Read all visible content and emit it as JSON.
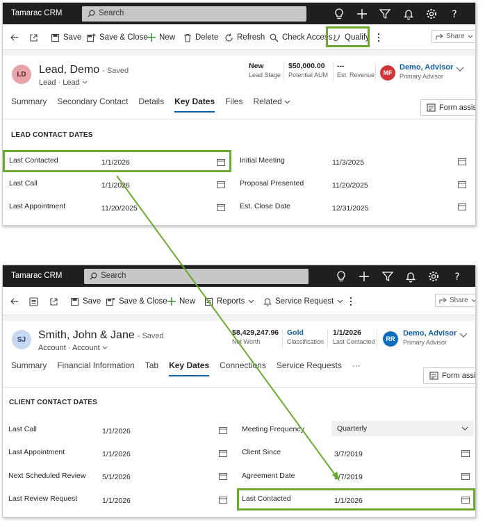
{
  "app_name": "Tamarac CRM",
  "search_placeholder": "Search",
  "colors": {
    "accent": "#115ea3",
    "highlight": "#6aaa2e",
    "topbar": "#1f1f1f"
  },
  "lead": {
    "commands": {
      "save": "Save",
      "save_close": "Save & Close",
      "new": "New",
      "delete": "Delete",
      "refresh": "Refresh",
      "check_access": "Check Access",
      "qualify": "Qualify",
      "share": "Share"
    },
    "avatar": "LD",
    "title": "Lead, Demo",
    "saved": "- Saved",
    "entity1": "Lead",
    "entity2": "Lead",
    "metrics": [
      {
        "value": "New",
        "label": "Lead Stage"
      },
      {
        "value": "$50,000.00",
        "label": "Potential AUM"
      },
      {
        "value": "---",
        "label": "Est. Revenue"
      }
    ],
    "owner_avatar": "MF",
    "owner_name": "Demo, Advisor",
    "owner_role": "Primary Advisor",
    "tabs": [
      "Summary",
      "Secondary Contact",
      "Details",
      "Key Dates",
      "Files",
      "Related"
    ],
    "form_assist": "Form assist",
    "section_title": "LEAD CONTACT DATES",
    "fields_left": [
      {
        "label": "Last Contacted",
        "value": "1/1/2026"
      },
      {
        "label": "Last Call",
        "value": "1/1/2026"
      },
      {
        "label": "Last Appointment",
        "value": "11/20/2025"
      }
    ],
    "fields_right": [
      {
        "label": "Initial Meeting",
        "value": "11/3/2025"
      },
      {
        "label": "Proposal Presented",
        "value": "11/20/2025"
      },
      {
        "label": "Est. Close Date",
        "value": "12/31/2025"
      }
    ]
  },
  "client": {
    "commands": {
      "save": "Save",
      "save_close": "Save & Close",
      "new": "New",
      "reports": "Reports",
      "service_request": "Service Request",
      "share": "Share"
    },
    "avatar": "SJ",
    "title": "Smith, John & Jane",
    "saved": "- Saved",
    "entity1": "Account",
    "entity2": "Account",
    "metrics": [
      {
        "value": "$8,429,247.96",
        "label": "Net Worth"
      },
      {
        "value": "Gold",
        "label": "Classification"
      },
      {
        "value": "1/1/2026",
        "label": "Last Contacted"
      }
    ],
    "owner_avatar": "RR",
    "owner_name": "Demo, Advisor",
    "owner_role": "Primary Advisor",
    "tabs": [
      "Summary",
      "Financial Information",
      "Tab",
      "Key Dates",
      "Connections",
      "Service Requests",
      "···"
    ],
    "form_assist": "Form assist",
    "section_title": "CLIENT CONTACT DATES",
    "fields_left": [
      {
        "label": "Last Call",
        "value": "1/1/2026"
      },
      {
        "label": "Last Appointment",
        "value": "1/1/2026"
      },
      {
        "label": "Next Scheduled Review",
        "value": "5/1/2026"
      },
      {
        "label": "Last Review Request",
        "value": "1/1/2026"
      }
    ],
    "fields_right": [
      {
        "label": "Meeting Frequency",
        "value": "Quarterly"
      },
      {
        "label": "Client Since",
        "value": "3/7/2019"
      },
      {
        "label": "Agreement Date",
        "value": "3/7/2019"
      },
      {
        "label": "Last Contacted",
        "value": "1/1/2026"
      }
    ]
  }
}
